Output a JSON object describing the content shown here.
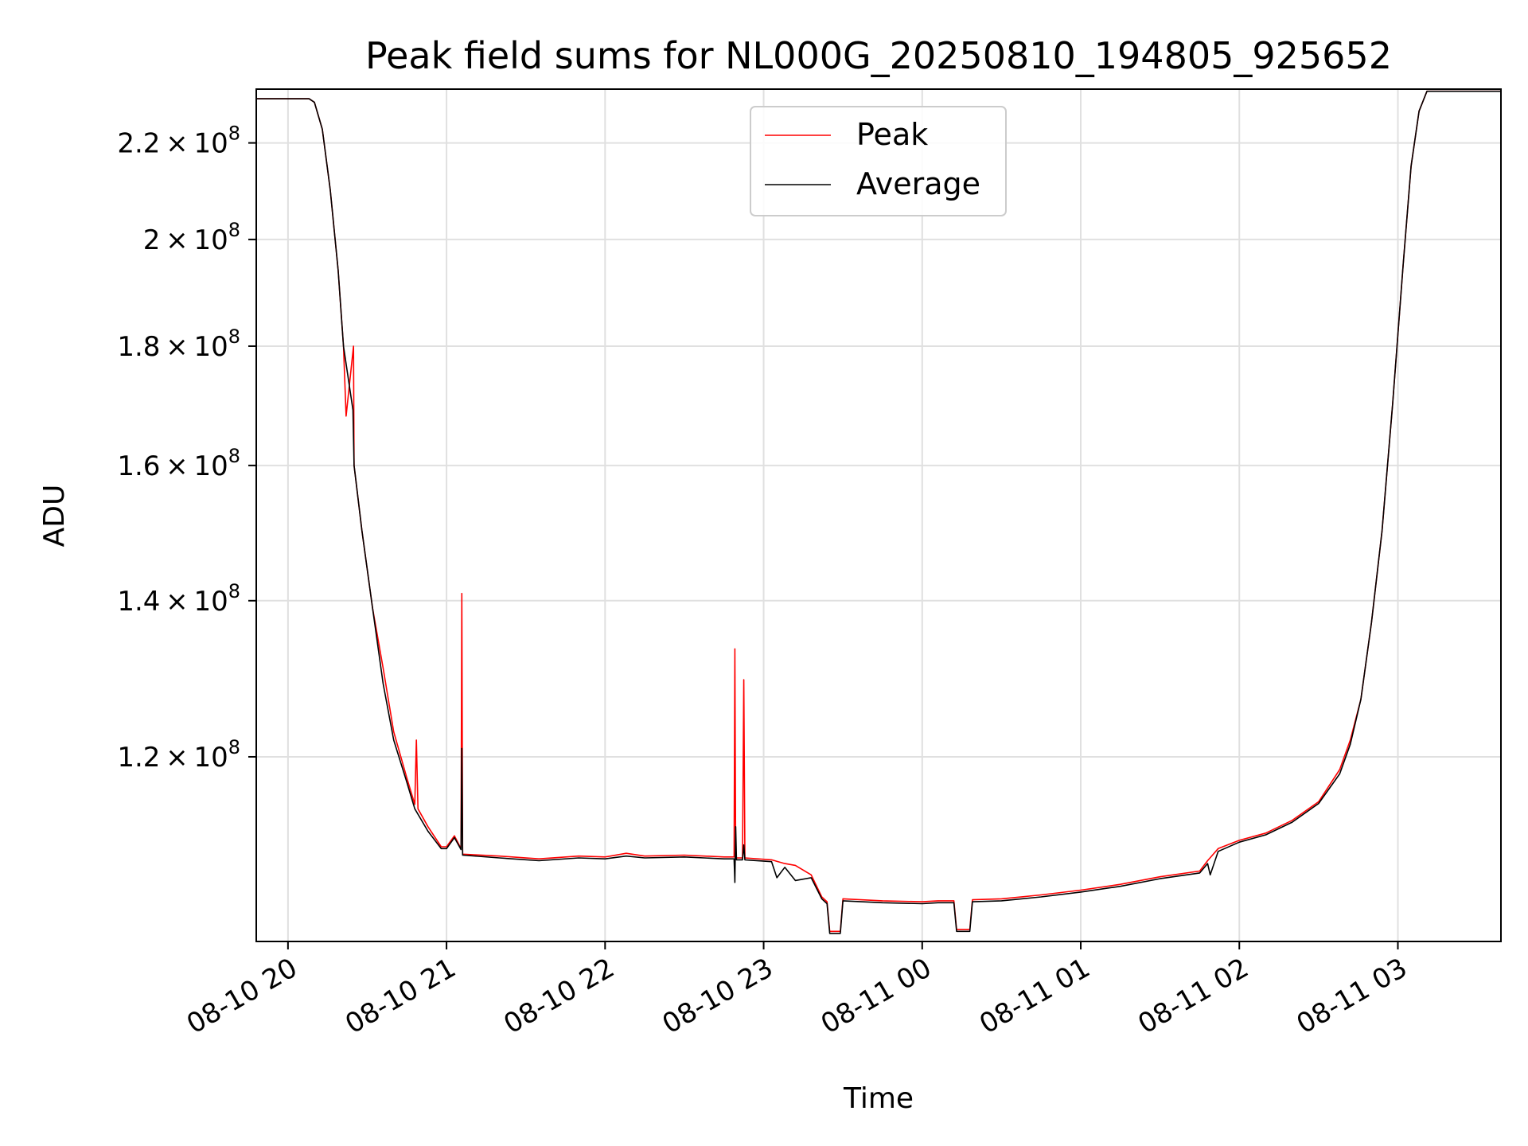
{
  "chart_data": {
    "type": "line",
    "title": "Peak field sums for NL000G_20250810_194805_925652",
    "xlabel": "Time",
    "ylabel": "ADU",
    "y_scale": "log",
    "xlim": [
      "2025-08-10 19:48",
      "2025-08-11 03:39"
    ],
    "ylim": [
      100000000,
      232000000
    ],
    "grid": true,
    "legend": {
      "placement": "top-center",
      "entries": [
        "Peak",
        "Average"
      ]
    },
    "x_ticks": [
      "2025-08-10 20:00",
      "2025-08-10 21:00",
      "2025-08-10 22:00",
      "2025-08-10 23:00",
      "2025-08-11 00:00",
      "2025-08-11 01:00",
      "2025-08-11 02:00",
      "2025-08-11 03:00"
    ],
    "x_tick_labels": [
      "08-10 20",
      "08-10 21",
      "08-10 22",
      "08-10 23",
      "08-11 00",
      "08-11 01",
      "08-11 02",
      "08-11 03"
    ],
    "y_ticks": [
      {
        "value": 120000000,
        "mantissa": "1.2",
        "base": "10",
        "exponent": "8"
      },
      {
        "value": 140000000,
        "mantissa": "1.4",
        "base": "10",
        "exponent": "8"
      },
      {
        "value": 160000000,
        "mantissa": "1.6",
        "base": "10",
        "exponent": "8"
      },
      {
        "value": 180000000,
        "mantissa": "1.8",
        "base": "10",
        "exponent": "8"
      },
      {
        "value": 200000000,
        "mantissa": "2",
        "base": "10",
        "exponent": "8"
      },
      {
        "value": 220000000,
        "mantissa": "2.2",
        "base": "10",
        "exponent": "8"
      }
    ],
    "series": [
      {
        "name": "Peak",
        "color": "#ff0000",
        "points": [
          [
            "2025-08-10 19:48",
            229800000
          ],
          [
            "2025-08-10 20:08",
            229800000
          ],
          [
            "2025-08-10 20:10",
            229000000
          ],
          [
            "2025-08-10 20:13",
            223000000
          ],
          [
            "2025-08-10 20:16",
            210000000
          ],
          [
            "2025-08-10 20:19",
            194000000
          ],
          [
            "2025-08-10 20:21",
            180000000
          ],
          [
            "2025-08-10 20:22",
            168000000
          ],
          [
            "2025-08-10 20:24.8",
            180000000
          ],
          [
            "2025-08-10 20:25",
            160000000
          ],
          [
            "2025-08-10 20:28",
            150000000
          ],
          [
            "2025-08-10 20:32",
            139000000
          ],
          [
            "2025-08-10 20:36",
            131000000
          ],
          [
            "2025-08-10 20:40",
            123000000
          ],
          [
            "2025-08-10 20:45",
            117500000
          ],
          [
            "2025-08-10 20:48",
            114500000
          ],
          [
            "2025-08-10 20:48.6",
            122000000
          ],
          [
            "2025-08-10 20:49.2",
            114000000
          ],
          [
            "2025-08-10 20:53",
            112000000
          ],
          [
            "2025-08-10 20:58",
            109800000
          ],
          [
            "2025-08-10 21:00",
            109800000
          ],
          [
            "2025-08-10 21:03",
            111000000
          ],
          [
            "2025-08-10 21:05.5",
            109600000
          ],
          [
            "2025-08-10 21:05.8",
            141000000
          ],
          [
            "2025-08-10 21:06.1",
            109000000
          ],
          [
            "2025-08-10 21:20",
            108800000
          ],
          [
            "2025-08-10 21:35",
            108500000
          ],
          [
            "2025-08-10 21:50",
            108800000
          ],
          [
            "2025-08-10 22:00",
            108700000
          ],
          [
            "2025-08-10 22:08",
            109100000
          ],
          [
            "2025-08-10 22:15",
            108800000
          ],
          [
            "2025-08-10 22:30",
            108900000
          ],
          [
            "2025-08-10 22:45",
            108700000
          ],
          [
            "2025-08-10 22:48.8",
            108700000
          ],
          [
            "2025-08-10 22:49.1",
            133500000
          ],
          [
            "2025-08-10 22:49.4",
            108600000
          ],
          [
            "2025-08-10 22:52",
            108600000
          ],
          [
            "2025-08-10 22:52.5",
            129500000
          ],
          [
            "2025-08-10 22:52.9",
            108600000
          ],
          [
            "2025-08-10 23:03",
            108400000
          ],
          [
            "2025-08-10 23:08",
            108000000
          ],
          [
            "2025-08-10 23:12",
            107800000
          ],
          [
            "2025-08-10 23:18",
            106800000
          ],
          [
            "2025-08-10 23:22",
            104500000
          ],
          [
            "2025-08-10 23:24",
            104000000
          ],
          [
            "2025-08-10 23:25",
            101000000
          ],
          [
            "2025-08-10 23:29",
            101000000
          ],
          [
            "2025-08-10 23:30",
            104300000
          ],
          [
            "2025-08-10 23:45",
            104100000
          ],
          [
            "2025-08-11 00:00",
            104000000
          ],
          [
            "2025-08-11 00:06",
            104100000
          ],
          [
            "2025-08-11 00:12",
            104100000
          ],
          [
            "2025-08-11 00:13",
            101200000
          ],
          [
            "2025-08-11 00:18",
            101200000
          ],
          [
            "2025-08-11 00:19",
            104200000
          ],
          [
            "2025-08-11 00:30",
            104300000
          ],
          [
            "2025-08-11 00:45",
            104700000
          ],
          [
            "2025-08-11 01:00",
            105200000
          ],
          [
            "2025-08-11 01:15",
            105800000
          ],
          [
            "2025-08-11 01:30",
            106600000
          ],
          [
            "2025-08-11 01:45",
            107200000
          ],
          [
            "2025-08-11 01:48",
            108300000
          ],
          [
            "2025-08-11 01:52",
            109600000
          ],
          [
            "2025-08-11 02:00",
            110500000
          ],
          [
            "2025-08-11 02:10",
            111300000
          ],
          [
            "2025-08-11 02:20",
            112700000
          ],
          [
            "2025-08-11 02:30",
            114800000
          ],
          [
            "2025-08-11 02:38",
            118500000
          ],
          [
            "2025-08-11 02:42",
            122000000
          ],
          [
            "2025-08-11 02:46",
            127000000
          ],
          [
            "2025-08-11 02:50",
            137000000
          ],
          [
            "2025-08-11 02:54",
            150000000
          ],
          [
            "2025-08-11 02:58",
            170000000
          ],
          [
            "2025-08-11 03:02",
            195000000
          ],
          [
            "2025-08-11 03:05",
            215000000
          ],
          [
            "2025-08-11 03:08",
            227000000
          ],
          [
            "2025-08-11 03:11",
            231500000
          ],
          [
            "2025-08-11 03:39",
            231500000
          ]
        ]
      },
      {
        "name": "Average",
        "color": "#000000",
        "points": [
          [
            "2025-08-10 19:48",
            229800000
          ],
          [
            "2025-08-10 20:08",
            229800000
          ],
          [
            "2025-08-10 20:10",
            229000000
          ],
          [
            "2025-08-10 20:13",
            223000000
          ],
          [
            "2025-08-10 20:16",
            210000000
          ],
          [
            "2025-08-10 20:19",
            194000000
          ],
          [
            "2025-08-10 20:21",
            180000000
          ],
          [
            "2025-08-10 20:24.6",
            169000000
          ],
          [
            "2025-08-10 20:25",
            160000000
          ],
          [
            "2025-08-10 20:28",
            150000000
          ],
          [
            "2025-08-10 20:32",
            139000000
          ],
          [
            "2025-08-10 20:36",
            129000000
          ],
          [
            "2025-08-10 20:40",
            122000000
          ],
          [
            "2025-08-10 20:45",
            117000000
          ],
          [
            "2025-08-10 20:48",
            114000000
          ],
          [
            "2025-08-10 20:53",
            111500000
          ],
          [
            "2025-08-10 20:58",
            109600000
          ],
          [
            "2025-08-10 21:00",
            109600000
          ],
          [
            "2025-08-10 21:03",
            110800000
          ],
          [
            "2025-08-10 21:05.5",
            109500000
          ],
          [
            "2025-08-10 21:05.8",
            121000000
          ],
          [
            "2025-08-10 21:06.1",
            108900000
          ],
          [
            "2025-08-10 21:20",
            108600000
          ],
          [
            "2025-08-10 21:35",
            108300000
          ],
          [
            "2025-08-10 21:50",
            108600000
          ],
          [
            "2025-08-10 22:00",
            108500000
          ],
          [
            "2025-08-10 22:08",
            108800000
          ],
          [
            "2025-08-10 22:15",
            108600000
          ],
          [
            "2025-08-10 22:30",
            108700000
          ],
          [
            "2025-08-10 22:45",
            108500000
          ],
          [
            "2025-08-10 22:48.8",
            108500000
          ],
          [
            "2025-08-10 22:49.1",
            106000000
          ],
          [
            "2025-08-10 22:49.4",
            112000000
          ],
          [
            "2025-08-10 22:49.7",
            108400000
          ],
          [
            "2025-08-10 22:52",
            108400000
          ],
          [
            "2025-08-10 22:52.5",
            110000000
          ],
          [
            "2025-08-10 22:52.9",
            108400000
          ],
          [
            "2025-08-10 23:03",
            108200000
          ],
          [
            "2025-08-10 23:05",
            106500000
          ],
          [
            "2025-08-10 23:08",
            107600000
          ],
          [
            "2025-08-10 23:12",
            106200000
          ],
          [
            "2025-08-10 23:18",
            106500000
          ],
          [
            "2025-08-10 23:22",
            104300000
          ],
          [
            "2025-08-10 23:24",
            103800000
          ],
          [
            "2025-08-10 23:25",
            100800000
          ],
          [
            "2025-08-10 23:29",
            100800000
          ],
          [
            "2025-08-10 23:30",
            104100000
          ],
          [
            "2025-08-10 23:45",
            103900000
          ],
          [
            "2025-08-11 00:00",
            103800000
          ],
          [
            "2025-08-11 00:06",
            103900000
          ],
          [
            "2025-08-11 00:12",
            103900000
          ],
          [
            "2025-08-11 00:13",
            101000000
          ],
          [
            "2025-08-11 00:18",
            101000000
          ],
          [
            "2025-08-11 00:19",
            104000000
          ],
          [
            "2025-08-11 00:30",
            104100000
          ],
          [
            "2025-08-11 00:45",
            104500000
          ],
          [
            "2025-08-11 01:00",
            105000000
          ],
          [
            "2025-08-11 01:15",
            105600000
          ],
          [
            "2025-08-11 01:30",
            106400000
          ],
          [
            "2025-08-11 01:45",
            107000000
          ],
          [
            "2025-08-11 01:48",
            108000000
          ],
          [
            "2025-08-11 01:49",
            106800000
          ],
          [
            "2025-08-11 01:52",
            109300000
          ],
          [
            "2025-08-11 02:00",
            110300000
          ],
          [
            "2025-08-11 02:10",
            111100000
          ],
          [
            "2025-08-11 02:20",
            112500000
          ],
          [
            "2025-08-11 02:30",
            114600000
          ],
          [
            "2025-08-11 02:38",
            118000000
          ],
          [
            "2025-08-11 02:42",
            121500000
          ],
          [
            "2025-08-11 02:46",
            127000000
          ],
          [
            "2025-08-11 02:50",
            137000000
          ],
          [
            "2025-08-11 02:54",
            150000000
          ],
          [
            "2025-08-11 02:58",
            170000000
          ],
          [
            "2025-08-11 03:02",
            195000000
          ],
          [
            "2025-08-11 03:05",
            215000000
          ],
          [
            "2025-08-11 03:08",
            227000000
          ],
          [
            "2025-08-11 03:11",
            231500000
          ],
          [
            "2025-08-11 03:39",
            231500000
          ]
        ]
      }
    ]
  }
}
